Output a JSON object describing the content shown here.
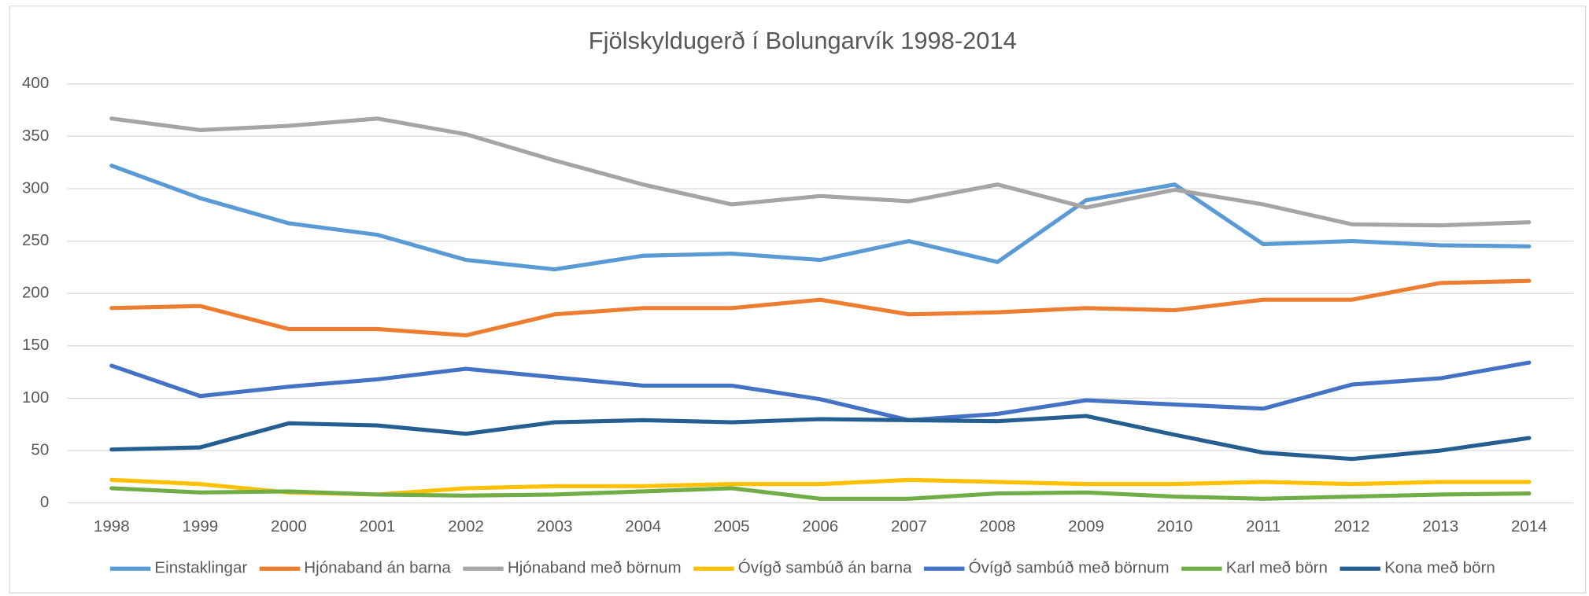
{
  "chart_data": {
    "type": "line",
    "title": "Fjölskyldugerð í Bolungarvík 1998-2014",
    "categories": [
      "1998",
      "1999",
      "2000",
      "2001",
      "2002",
      "2003",
      "2004",
      "2005",
      "2006",
      "2007",
      "2008",
      "2009",
      "2010",
      "2011",
      "2012",
      "2013",
      "2014"
    ],
    "series": [
      {
        "name": "Einstaklingar",
        "color": "#5b9bd5",
        "values": [
          322,
          291,
          267,
          256,
          232,
          223,
          236,
          238,
          232,
          250,
          230,
          289,
          304,
          247,
          250,
          246,
          245
        ]
      },
      {
        "name": "Hjónaband án barna",
        "color": "#ed7d31",
        "values": [
          186,
          188,
          166,
          166,
          160,
          180,
          186,
          186,
          194,
          180,
          182,
          186,
          184,
          194,
          194,
          210,
          212
        ]
      },
      {
        "name": "Hjónaband með börnum",
        "color": "#a5a5a5",
        "values": [
          367,
          356,
          360,
          367,
          352,
          327,
          304,
          285,
          293,
          288,
          304,
          282,
          299,
          285,
          266,
          265,
          268
        ]
      },
      {
        "name": "Óvígð sambúð án barna",
        "color": "#ffc000",
        "values": [
          22,
          18,
          10,
          8,
          14,
          16,
          16,
          18,
          18,
          22,
          20,
          18,
          18,
          20,
          18,
          20,
          20
        ]
      },
      {
        "name": "Óvígð sambúð með börnum",
        "color": "#4472c4",
        "values": [
          131,
          102,
          111,
          118,
          128,
          120,
          112,
          112,
          99,
          79,
          85,
          98,
          94,
          90,
          113,
          119,
          134
        ]
      },
      {
        "name": "Karl með börn",
        "color": "#70ad47",
        "values": [
          14,
          10,
          11,
          8,
          7,
          8,
          11,
          14,
          4,
          4,
          9,
          10,
          6,
          4,
          6,
          8,
          9
        ]
      },
      {
        "name": "Kona með börn",
        "color": "#255e91",
        "values": [
          51,
          53,
          76,
          74,
          66,
          77,
          79,
          77,
          80,
          79,
          78,
          83,
          65,
          48,
          42,
          50,
          62
        ]
      }
    ],
    "ylim": [
      0,
      400
    ],
    "yticks": [
      0,
      50,
      100,
      150,
      200,
      250,
      300,
      350,
      400
    ],
    "grid": true,
    "legend": "bottom"
  }
}
